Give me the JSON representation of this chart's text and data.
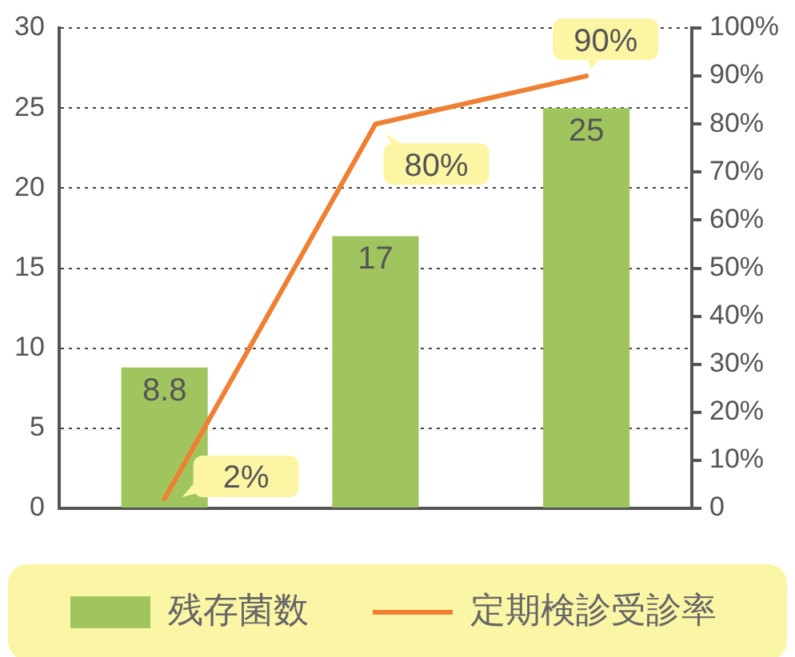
{
  "chart_data": {
    "type": "bar",
    "categories": [
      null,
      null,
      null
    ],
    "series": [
      {
        "name": "残存菌数",
        "color": "#a0c55f",
        "values": [
          8.8,
          17,
          25
        ],
        "value_labels": [
          "8.8",
          "17",
          "25"
        ]
      },
      {
        "name": "定期検診受診率",
        "type": "line",
        "axis": "y2",
        "color": "#ef8033",
        "values": [
          2,
          80,
          90
        ],
        "value_labels": [
          "2%",
          "80%",
          "90%"
        ],
        "line_style": "solid"
      }
    ],
    "ylim": [
      0,
      30
    ],
    "yticks": [
      0,
      5,
      10,
      15,
      20,
      25,
      30
    ],
    "y2lim": [
      0,
      100
    ],
    "y2ticks": [
      0,
      {
        "value": 10,
        "label": "10%"
      },
      {
        "value": 20,
        "label": "20%"
      },
      {
        "value": 30,
        "label": "30%"
      },
      {
        "value": 40,
        "label": "40%"
      },
      {
        "value": 50,
        "label": "50%"
      },
      {
        "value": 60,
        "label": "60%"
      },
      {
        "value": 70,
        "label": "70%"
      },
      {
        "value": 80,
        "label": "80%"
      },
      {
        "value": 90,
        "label": "90%"
      },
      {
        "value": 100,
        "label": "100%"
      }
    ],
    "grid": "y",
    "legend": "bottom",
    "marker": "none"
  }
}
